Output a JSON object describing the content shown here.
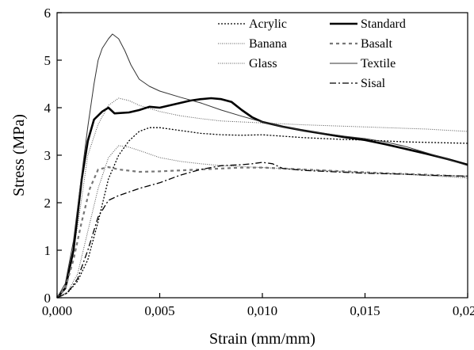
{
  "chart_data": {
    "type": "line",
    "title": "",
    "xlabel": "Strain (mm/mm)",
    "ylabel": "Stress (MPa)",
    "xlim": [
      0,
      0.02
    ],
    "ylim": [
      0,
      6
    ],
    "x_ticks": [
      0,
      0.005,
      0.01,
      0.015,
      0.02
    ],
    "x_tick_labels": [
      "0,000",
      "0,005",
      "0,010",
      "0,015",
      "0,020"
    ],
    "y_ticks": [
      0,
      1,
      2,
      3,
      4,
      5,
      6
    ],
    "y_tick_labels": [
      "0",
      "1",
      "2",
      "3",
      "4",
      "5",
      "6"
    ],
    "grid": false,
    "legend_position": "top-right",
    "series": [
      {
        "name": "Acrylic",
        "color": "#000000",
        "style": "dotted",
        "points": [
          [
            0,
            0
          ],
          [
            0.0005,
            0.1
          ],
          [
            0.001,
            0.35
          ],
          [
            0.0015,
            0.8
          ],
          [
            0.002,
            1.6
          ],
          [
            0.0025,
            2.5
          ],
          [
            0.003,
            3.0
          ],
          [
            0.0035,
            3.3
          ],
          [
            0.004,
            3.5
          ],
          [
            0.0045,
            3.58
          ],
          [
            0.005,
            3.58
          ],
          [
            0.006,
            3.52
          ],
          [
            0.007,
            3.46
          ],
          [
            0.008,
            3.43
          ],
          [
            0.009,
            3.42
          ],
          [
            0.01,
            3.43
          ],
          [
            0.011,
            3.4
          ],
          [
            0.012,
            3.37
          ],
          [
            0.013,
            3.35
          ],
          [
            0.014,
            3.33
          ],
          [
            0.015,
            3.32
          ],
          [
            0.016,
            3.3
          ],
          [
            0.017,
            3.28
          ],
          [
            0.018,
            3.27
          ],
          [
            0.019,
            3.26
          ],
          [
            0.02,
            3.25
          ]
        ]
      },
      {
        "name": "Banana",
        "color": "#555555",
        "style": "fine-dotted",
        "points": [
          [
            0,
            0
          ],
          [
            0.0005,
            0.12
          ],
          [
            0.001,
            0.5
          ],
          [
            0.0015,
            1.4
          ],
          [
            0.002,
            2.3
          ],
          [
            0.0025,
            2.95
          ],
          [
            0.003,
            3.2
          ],
          [
            0.0035,
            3.17
          ],
          [
            0.004,
            3.1
          ],
          [
            0.005,
            2.95
          ],
          [
            0.006,
            2.87
          ],
          [
            0.007,
            2.82
          ],
          [
            0.008,
            2.78
          ],
          [
            0.009,
            2.76
          ],
          [
            0.01,
            2.74
          ],
          [
            0.012,
            2.7
          ],
          [
            0.014,
            2.66
          ],
          [
            0.016,
            2.62
          ],
          [
            0.018,
            2.57
          ],
          [
            0.02,
            2.52
          ]
        ]
      },
      {
        "name": "Glass",
        "color": "#555555",
        "style": "fine-dotted",
        "points": [
          [
            0,
            0
          ],
          [
            0.0005,
            0.3
          ],
          [
            0.001,
            1.5
          ],
          [
            0.0015,
            3.0
          ],
          [
            0.002,
            3.65
          ],
          [
            0.0025,
            4.05
          ],
          [
            0.003,
            4.2
          ],
          [
            0.0035,
            4.15
          ],
          [
            0.004,
            4.05
          ],
          [
            0.005,
            3.92
          ],
          [
            0.006,
            3.83
          ],
          [
            0.007,
            3.77
          ],
          [
            0.008,
            3.72
          ],
          [
            0.009,
            3.7
          ],
          [
            0.01,
            3.68
          ],
          [
            0.012,
            3.64
          ],
          [
            0.014,
            3.61
          ],
          [
            0.016,
            3.58
          ],
          [
            0.018,
            3.55
          ],
          [
            0.02,
            3.5
          ]
        ]
      },
      {
        "name": "Standard",
        "color": "#000000",
        "style": "thick",
        "points": [
          [
            0,
            0
          ],
          [
            0.0004,
            0.2
          ],
          [
            0.0008,
            1.0
          ],
          [
            0.0012,
            2.5
          ],
          [
            0.0015,
            3.3
          ],
          [
            0.0018,
            3.75
          ],
          [
            0.0022,
            3.92
          ],
          [
            0.0025,
            4.0
          ],
          [
            0.0028,
            3.88
          ],
          [
            0.0035,
            3.9
          ],
          [
            0.004,
            3.95
          ],
          [
            0.0045,
            4.02
          ],
          [
            0.005,
            4.0
          ],
          [
            0.0055,
            4.05
          ],
          [
            0.006,
            4.1
          ],
          [
            0.0065,
            4.15
          ],
          [
            0.007,
            4.18
          ],
          [
            0.0075,
            4.2
          ],
          [
            0.008,
            4.18
          ],
          [
            0.0085,
            4.12
          ],
          [
            0.009,
            3.95
          ],
          [
            0.0095,
            3.8
          ],
          [
            0.01,
            3.7
          ],
          [
            0.011,
            3.6
          ],
          [
            0.012,
            3.52
          ],
          [
            0.013,
            3.45
          ],
          [
            0.014,
            3.38
          ],
          [
            0.015,
            3.32
          ],
          [
            0.016,
            3.23
          ],
          [
            0.017,
            3.13
          ],
          [
            0.018,
            3.03
          ],
          [
            0.019,
            2.92
          ],
          [
            0.02,
            2.8
          ]
        ]
      },
      {
        "name": "Basalt",
        "color": "#777777",
        "style": "dashed",
        "points": [
          [
            0,
            0
          ],
          [
            0.0004,
            0.2
          ],
          [
            0.0008,
            0.8
          ],
          [
            0.0012,
            1.6
          ],
          [
            0.0016,
            2.3
          ],
          [
            0.002,
            2.7
          ],
          [
            0.0025,
            2.75
          ],
          [
            0.003,
            2.7
          ],
          [
            0.004,
            2.65
          ],
          [
            0.005,
            2.66
          ],
          [
            0.006,
            2.68
          ],
          [
            0.007,
            2.7
          ],
          [
            0.008,
            2.72
          ],
          [
            0.009,
            2.74
          ],
          [
            0.01,
            2.74
          ],
          [
            0.012,
            2.7
          ],
          [
            0.014,
            2.66
          ],
          [
            0.016,
            2.62
          ],
          [
            0.018,
            2.59
          ],
          [
            0.02,
            2.55
          ]
        ]
      },
      {
        "name": "Textile",
        "color": "#333333",
        "style": "thin",
        "points": [
          [
            0,
            0
          ],
          [
            0.0004,
            0.3
          ],
          [
            0.0008,
            1.2
          ],
          [
            0.0012,
            2.6
          ],
          [
            0.0015,
            3.6
          ],
          [
            0.0018,
            4.5
          ],
          [
            0.002,
            5.0
          ],
          [
            0.0022,
            5.25
          ],
          [
            0.0025,
            5.45
          ],
          [
            0.0027,
            5.55
          ],
          [
            0.003,
            5.45
          ],
          [
            0.0033,
            5.2
          ],
          [
            0.0036,
            4.9
          ],
          [
            0.004,
            4.6
          ],
          [
            0.0045,
            4.45
          ],
          [
            0.005,
            4.35
          ],
          [
            0.006,
            4.22
          ],
          [
            0.007,
            4.1
          ],
          [
            0.008,
            3.95
          ],
          [
            0.009,
            3.82
          ],
          [
            0.01,
            3.7
          ],
          [
            0.011,
            3.6
          ],
          [
            0.012,
            3.52
          ],
          [
            0.013,
            3.46
          ],
          [
            0.014,
            3.4
          ],
          [
            0.015,
            3.35
          ],
          [
            0.016,
            3.28
          ],
          [
            0.017,
            3.18
          ],
          [
            0.018,
            3.05
          ],
          [
            0.019,
            2.92
          ],
          [
            0.02,
            2.78
          ]
        ]
      },
      {
        "name": "Sisal",
        "color": "#000000",
        "style": "dash-dot",
        "points": [
          [
            0,
            0
          ],
          [
            0.0005,
            0.1
          ],
          [
            0.001,
            0.4
          ],
          [
            0.0015,
            1.0
          ],
          [
            0.002,
            1.7
          ],
          [
            0.0025,
            2.05
          ],
          [
            0.003,
            2.15
          ],
          [
            0.004,
            2.3
          ],
          [
            0.005,
            2.42
          ],
          [
            0.006,
            2.58
          ],
          [
            0.007,
            2.7
          ],
          [
            0.008,
            2.78
          ],
          [
            0.009,
            2.8
          ],
          [
            0.0095,
            2.82
          ],
          [
            0.01,
            2.85
          ],
          [
            0.0105,
            2.82
          ],
          [
            0.011,
            2.72
          ],
          [
            0.012,
            2.68
          ],
          [
            0.013,
            2.66
          ],
          [
            0.014,
            2.64
          ],
          [
            0.015,
            2.62
          ],
          [
            0.016,
            2.61
          ],
          [
            0.017,
            2.6
          ],
          [
            0.018,
            2.58
          ],
          [
            0.019,
            2.57
          ],
          [
            0.02,
            2.56
          ]
        ]
      }
    ]
  }
}
